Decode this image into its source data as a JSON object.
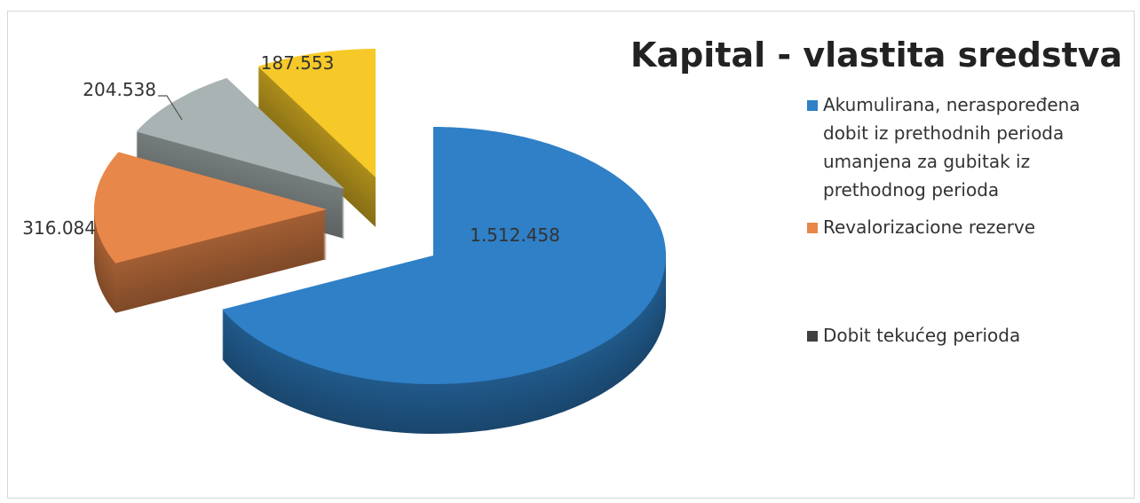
{
  "chart_data": {
    "type": "pie3d",
    "title": "Kapital - vlastita sredstva",
    "categories": [
      "Akumulirana, neraspoređena dobit iz prethodnih perioda umanjena za gubitak iz prethodnog perioda",
      "Revalorizacione rezerve",
      "Dobit tekućeg perioda",
      null
    ],
    "values": [
      1512458,
      316084,
      204538,
      187553
    ],
    "value_labels": [
      "1.512.458",
      "316.084",
      "204.538",
      "187.553"
    ],
    "colors": [
      "#2f80c6",
      "#e8874a",
      "#a9b3b3",
      "#f6c928"
    ],
    "legend_colors": [
      "#2f80c6",
      "#e8874a",
      "#404040",
      null
    ]
  }
}
